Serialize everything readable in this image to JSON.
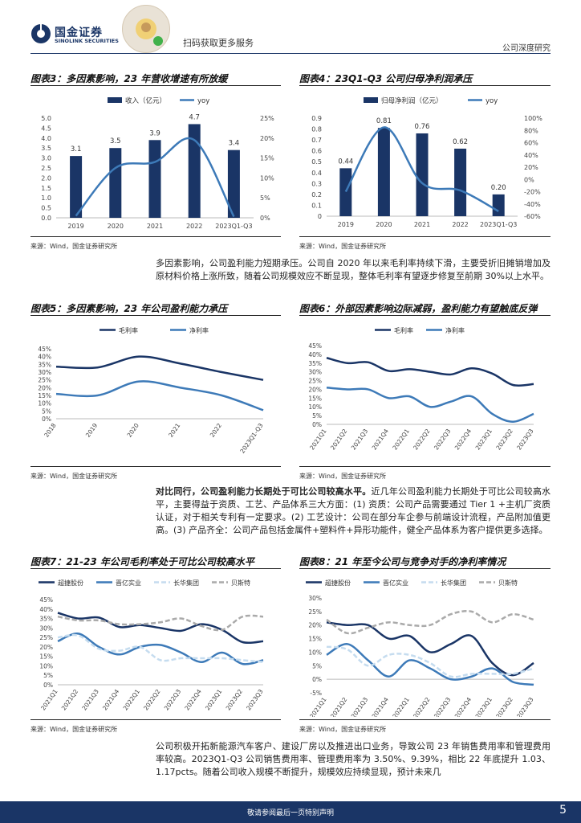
{
  "header": {
    "brand_cn": "国金证券",
    "brand_en": "SINOLINK SECURITIES",
    "scan_text": "扫码获取更多服务",
    "report_type": "公司深度研究"
  },
  "colors": {
    "navy": "#1a3566",
    "blue": "#3d7ab8",
    "lightblue": "#c5dcef",
    "gray": "#aaaaaa"
  },
  "source_text": "来源：Wind，国金证券研究所",
  "paragraphs": {
    "p1": "多因素影响，公司盈利能力短期承压。公司自 2020 年以来毛利率持续下滑，主要受折旧摊销增加及原材料价格上涨所致，随着公司规模效应不断显现，整体毛利率有望逐步修复至前期 30%以上水平。",
    "p2_bold": "对比同行，公司盈利能力长期处于可比公司较高水平。",
    "p2_rest": "近几年公司盈利能力长期处于可比公司较高水平，主要得益于资质、工艺、产品体系三大方面：(1) 资质：公司产品需要通过 Tier 1 +主机厂资质认证，对于相关专利有一定要求。(2) 工艺设计：公司在部分车企参与前端设计流程，产品附加值更高。(3) 产品齐全：公司产品包括金属件+塑料件+异形功能件，健全产品体系为客户提供更多选择。",
    "p3": "公司积极开拓新能源汽车客户、建设厂房以及推进出口业务，导致公司 23 年销售费用率和管理费用率较高。2023Q1-Q3 公司销售费用率、管理费用率为 3.50%、9.39%，相比 22 年底提升 1.03、1.17pcts。随着公司收入规模不断提升，规模效应持续显现，预计未来几"
  },
  "footer": {
    "text": "敬请参阅最后一页特别声明",
    "page": "5"
  },
  "chart_data": [
    {
      "id": "fig3",
      "type": "bar",
      "title": "图表3：多因素影响，23 年营收增速有所放缓",
      "legend": [
        "收入（亿元）",
        "yoy"
      ],
      "categories": [
        "2019",
        "2020",
        "2021",
        "2022",
        "2023Q1-Q3"
      ],
      "series": [
        {
          "name": "收入（亿元）",
          "values": [
            3.1,
            3.5,
            3.9,
            4.7,
            3.4
          ],
          "labels": [
            "3.1",
            "3.5",
            "3.9",
            "4.7",
            "3.4"
          ]
        },
        {
          "name": "yoy",
          "values": [
            0.5,
            12.5,
            14.0,
            19.5,
            0.3
          ],
          "axis": "right"
        }
      ],
      "ylim": [
        0,
        5
      ],
      "yticks": [
        "0.0",
        "0.5",
        "1.0",
        "1.5",
        "2.0",
        "2.5",
        "3.0",
        "3.5",
        "4.0",
        "4.5",
        "5.0"
      ],
      "y2lim": [
        0,
        25
      ],
      "y2ticks": [
        "0%",
        "5%",
        "10%",
        "15%",
        "20%",
        "25%"
      ]
    },
    {
      "id": "fig4",
      "type": "bar",
      "title": "图表4：23Q1-Q3 公司归母净利润承压",
      "legend": [
        "归母净利润（亿元）",
        "yoy"
      ],
      "categories": [
        "2019",
        "2020",
        "2021",
        "2022",
        "2023Q1-Q3"
      ],
      "series": [
        {
          "name": "归母净利润（亿元）",
          "values": [
            0.44,
            0.81,
            0.76,
            0.62,
            0.2
          ],
          "labels": [
            "0.44",
            "0.81",
            "0.76",
            "0.62",
            "0.20"
          ]
        },
        {
          "name": "yoy",
          "values": [
            -20,
            85,
            -6,
            -18,
            -52
          ],
          "axis": "right"
        }
      ],
      "ylim": [
        0,
        0.9
      ],
      "yticks": [
        "0",
        "0.1",
        "0.2",
        "0.3",
        "0.4",
        "0.5",
        "0.6",
        "0.7",
        "0.8",
        "0.9"
      ],
      "y2lim": [
        -60,
        100
      ],
      "y2ticks": [
        "-60%",
        "-40%",
        "-20%",
        "0%",
        "20%",
        "40%",
        "60%",
        "80%",
        "100%"
      ]
    },
    {
      "id": "fig5",
      "type": "line",
      "title": "图表5：多因素影响，23 年公司盈利能力承压",
      "legend": [
        "毛利率",
        "净利率"
      ],
      "categories": [
        "2018",
        "2019",
        "2020",
        "2021",
        "2022",
        "2023Q1-Q3"
      ],
      "series": [
        {
          "name": "毛利率",
          "values": [
            33.5,
            33,
            40,
            35.5,
            30,
            25
          ]
        },
        {
          "name": "净利率",
          "values": [
            16,
            15,
            24,
            20,
            15,
            5.5
          ]
        }
      ],
      "ylim": [
        0,
        45
      ],
      "yticks": [
        "0%",
        "5%",
        "10%",
        "15%",
        "20%",
        "25%",
        "30%",
        "35%",
        "40%",
        "45%"
      ]
    },
    {
      "id": "fig6",
      "type": "line",
      "title": "图表6：外部因素影响边际减弱，盈利能力有望触底反弹",
      "legend": [
        "毛利率",
        "净利率"
      ],
      "categories": [
        "2021Q1",
        "2021Q2",
        "2021Q3",
        "2021Q4",
        "2022Q1",
        "2022Q2",
        "2022Q3",
        "2022Q4",
        "2023Q1",
        "2023Q2",
        "2023Q3"
      ],
      "series": [
        {
          "name": "毛利率",
          "values": [
            38,
            35,
            35.5,
            30.5,
            31.5,
            30,
            28.5,
            32,
            29,
            22.5,
            23
          ]
        },
        {
          "name": "净利率",
          "values": [
            21,
            20,
            20,
            15,
            16,
            10,
            13,
            16,
            6,
            1.5,
            6
          ]
        }
      ],
      "ylim": [
        0,
        45
      ],
      "yticks": [
        "0%",
        "5%",
        "10%",
        "15%",
        "20%",
        "25%",
        "30%",
        "35%",
        "40%",
        "45%"
      ]
    },
    {
      "id": "fig7",
      "type": "line",
      "title": "图表7：21-23 年公司毛利率处于可比公司较高水平",
      "legend": [
        "超捷股份",
        "晋亿实业",
        "长华集团",
        "贝斯特"
      ],
      "categories": [
        "2021Q1",
        "2021Q2",
        "2021Q3",
        "2021Q4",
        "2022Q1",
        "2022Q2",
        "2022Q3",
        "2022Q4",
        "2023Q1",
        "2023Q2",
        "2023Q3"
      ],
      "series": [
        {
          "name": "超捷股份",
          "values": [
            38,
            35,
            35.5,
            30.5,
            31.5,
            30,
            28.5,
            32,
            29,
            22.5,
            23
          ]
        },
        {
          "name": "晋亿实业",
          "values": [
            23,
            27,
            20,
            16,
            20,
            21,
            17,
            12,
            17,
            11,
            13
          ]
        },
        {
          "name": "长华集团",
          "values": [
            25,
            26,
            19,
            18,
            20,
            13,
            14,
            14,
            14,
            13,
            12
          ]
        },
        {
          "name": "贝斯特",
          "values": [
            36,
            34,
            34,
            32,
            32,
            33,
            35,
            31,
            29,
            36,
            36
          ]
        }
      ],
      "ylim": [
        0,
        45
      ],
      "yticks": [
        "0%",
        "5%",
        "10%",
        "15%",
        "20%",
        "25%",
        "30%",
        "35%",
        "40%",
        "45%"
      ]
    },
    {
      "id": "fig8",
      "type": "line",
      "title": "图表8：21 年至今公司与竞争对手的净利率情况",
      "legend": [
        "超捷股份",
        "晋亿实业",
        "长华集团",
        "贝斯特"
      ],
      "categories": [
        "2021Q1",
        "2021Q2",
        "2021Q3",
        "2021Q4",
        "2022Q1",
        "2022Q2",
        "2022Q3",
        "2022Q4",
        "2023Q1",
        "2023Q2",
        "2023Q3"
      ],
      "series": [
        {
          "name": "超捷股份",
          "values": [
            21,
            20,
            20,
            15,
            16,
            10,
            13,
            16,
            6,
            1.5,
            6
          ]
        },
        {
          "name": "晋亿实业",
          "values": [
            9,
            13,
            7,
            1,
            7,
            4,
            0,
            1,
            4,
            -1,
            -2
          ]
        },
        {
          "name": "长华集团",
          "values": [
            12,
            11,
            5,
            9,
            9,
            6,
            1,
            2,
            2,
            2,
            4
          ]
        },
        {
          "name": "贝斯特",
          "values": [
            22,
            17,
            19,
            21,
            20,
            20,
            24,
            25,
            21,
            24,
            22
          ]
        }
      ],
      "ylim": [
        -5,
        30
      ],
      "yticks": [
        "-5%",
        "0%",
        "5%",
        "10%",
        "15%",
        "20%",
        "25%",
        "30%"
      ]
    }
  ]
}
